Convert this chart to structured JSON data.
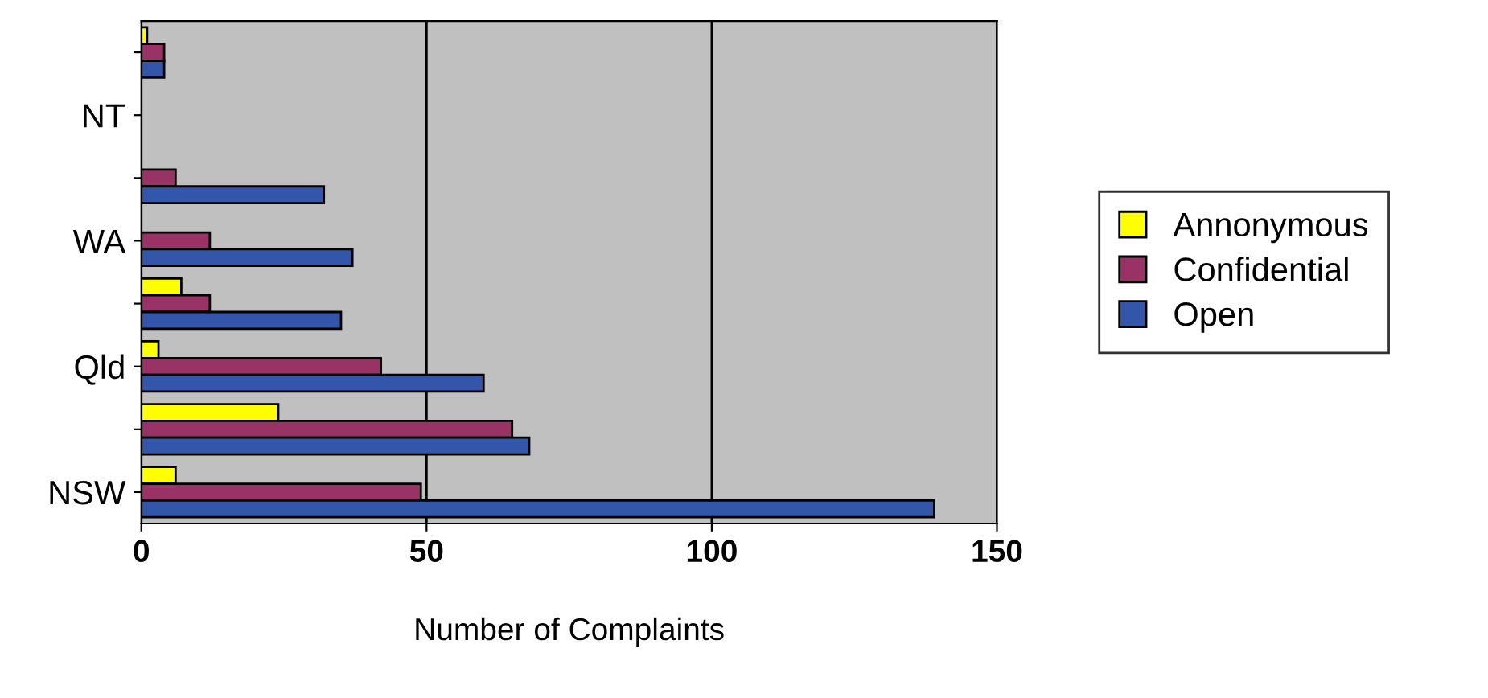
{
  "chart_data": {
    "type": "bar",
    "orientation": "horizontal",
    "xlabel": "Number of Complaints",
    "categories": [
      null,
      "NT",
      null,
      "WA",
      null,
      "Qld",
      null,
      "NSW"
    ],
    "series": [
      {
        "name": "Annonymous",
        "color": "#ffff00",
        "values": [
          1,
          null,
          0,
          0,
          7,
          3,
          24,
          6
        ]
      },
      {
        "name": "Confidential",
        "color": "#993366",
        "values": [
          4,
          null,
          6,
          12,
          12,
          42,
          65,
          49
        ]
      },
      {
        "name": "Open",
        "color": "#3355aa",
        "values": [
          4,
          null,
          32,
          37,
          35,
          60,
          68,
          139
        ]
      }
    ],
    "xlim": [
      0,
      150
    ],
    "xticks": [
      0,
      50,
      100,
      150
    ],
    "grid": "x",
    "legend": "right"
  }
}
